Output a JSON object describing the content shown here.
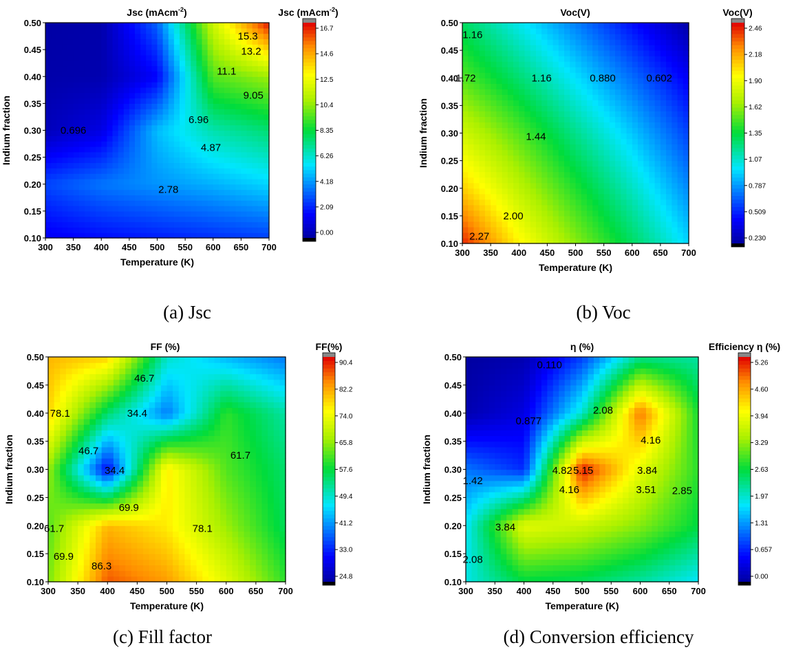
{
  "chart_data": [
    {
      "type": "heatmap",
      "title": "Jsc (mAcm<sup>-2</sup>)",
      "title_text": "Jsc (mAcm",
      "title_sup": "-2",
      "title_tail": ")",
      "xlabel": "Temperature (K)",
      "ylabel": "Indium fraction",
      "x": [
        300,
        400,
        500,
        600,
        700
      ],
      "y": [
        0.1,
        0.2,
        0.3,
        0.4,
        0.5
      ],
      "xticks": [
        "300",
        "350",
        "400",
        "450",
        "500",
        "550",
        "600",
        "650",
        "700"
      ],
      "yticks": [
        "0.10",
        "0.15",
        "0.20",
        "0.25",
        "0.30",
        "0.35",
        "0.40",
        "0.45",
        "0.50"
      ],
      "xlim": [
        300,
        700
      ],
      "ylim": [
        0.1,
        0.5
      ],
      "z": [
        [
          1.6,
          2.0,
          2.3,
          2.6,
          2.9
        ],
        [
          3.0,
          3.8,
          4.3,
          4.8,
          5.4
        ],
        [
          0.5,
          1.3,
          5.0,
          6.8,
          7.6
        ],
        [
          0.2,
          0.3,
          1.8,
          9.5,
          10.5
        ],
        [
          0.1,
          0.2,
          3.5,
          11.5,
          16.5
        ]
      ],
      "colorbar": {
        "title_text": "Jsc (mAcm",
        "title_sup": "-2",
        "title_tail": ")",
        "min": 0.0,
        "max": 16.7,
        "ticks": [
          "0.00",
          "2.09",
          "4.18",
          "6.26",
          "8.35",
          "10.4",
          "12.5",
          "14.6",
          "16.7"
        ]
      },
      "contour_labels": [
        {
          "text": "15.3",
          "x": 662,
          "y": 0.475
        },
        {
          "text": "13.2",
          "x": 668,
          "y": 0.447
        },
        {
          "text": "11.1",
          "x": 624,
          "y": 0.41
        },
        {
          "text": "9.05",
          "x": 672,
          "y": 0.365
        },
        {
          "text": "6.96",
          "x": 574,
          "y": 0.32
        },
        {
          "text": "4.87",
          "x": 596,
          "y": 0.268
        },
        {
          "text": "2.78",
          "x": 520,
          "y": 0.19
        },
        {
          "text": "0.696",
          "x": 350,
          "y": 0.3
        }
      ],
      "caption": "(a) Jsc"
    },
    {
      "type": "heatmap",
      "title": "Voc(V)",
      "xlabel": "Temperature (K)",
      "ylabel": "Indium fraction",
      "x": [
        300,
        400,
        500,
        600,
        700
      ],
      "y": [
        0.1,
        0.2,
        0.3,
        0.4,
        0.5
      ],
      "xticks": [
        "300",
        "350",
        "400",
        "450",
        "500",
        "550",
        "600",
        "650",
        "700"
      ],
      "yticks": [
        "0.10",
        "0.15",
        "0.20",
        "0.25",
        "0.30",
        "0.35",
        "0.40",
        "0.45",
        "0.50"
      ],
      "xlim": [
        300,
        700
      ],
      "ylim": [
        0.1,
        0.5
      ],
      "z": [
        [
          2.4,
          1.95,
          1.6,
          1.28,
          0.95
        ],
        [
          2.05,
          1.72,
          1.4,
          1.1,
          0.78
        ],
        [
          1.78,
          1.5,
          1.2,
          0.92,
          0.62
        ],
        [
          1.5,
          1.25,
          0.98,
          0.72,
          0.45
        ],
        [
          1.28,
          1.02,
          0.76,
          0.5,
          0.25
        ]
      ],
      "colorbar": {
        "title_text": "Voc(V)",
        "min": 0.23,
        "max": 2.46,
        "ticks": [
          "0.230",
          "0.509",
          "0.787",
          "1.07",
          "1.35",
          "1.62",
          "1.90",
          "2.18",
          "2.46"
        ]
      },
      "contour_labels": [
        {
          "text": "1.16",
          "x": 318,
          "y": 0.478
        },
        {
          "text": "1.72",
          "x": 306,
          "y": 0.4
        },
        {
          "text": "1.16",
          "x": 440,
          "y": 0.4
        },
        {
          "text": "0.880",
          "x": 548,
          "y": 0.4
        },
        {
          "text": "0.602",
          "x": 648,
          "y": 0.4
        },
        {
          "text": "1.44",
          "x": 430,
          "y": 0.294
        },
        {
          "text": "2.00",
          "x": 390,
          "y": 0.15
        },
        {
          "text": "2.27",
          "x": 330,
          "y": 0.113
        }
      ],
      "caption": "(b) Voc"
    },
    {
      "type": "heatmap",
      "title": "FF (%)",
      "xlabel": "Temperature (K)",
      "ylabel": "Indium fraction",
      "x": [
        300,
        400,
        500,
        600,
        700
      ],
      "y": [
        0.1,
        0.2,
        0.3,
        0.4,
        0.5
      ],
      "xticks": [
        "300",
        "350",
        "400",
        "450",
        "500",
        "550",
        "600",
        "650",
        "700"
      ],
      "yticks": [
        "0.10",
        "0.15",
        "0.20",
        "0.25",
        "0.30",
        "0.35",
        "0.40",
        "0.45",
        "0.50"
      ],
      "xlim": [
        300,
        700
      ],
      "ylim": [
        0.1,
        0.5
      ],
      "z": [
        [
          64,
          86,
          82,
          72,
          60
        ],
        [
          62,
          80,
          76,
          66,
          56
        ],
        [
          66,
          32,
          76,
          62,
          55
        ],
        [
          78,
          55,
          40,
          60,
          52
        ],
        [
          80,
          78,
          50,
          44,
          40
        ]
      ],
      "colorbar": {
        "title_text": "FF(%)",
        "min": 24.8,
        "max": 90.4,
        "ticks": [
          "24.8",
          "33.0",
          "41.2",
          "49.4",
          "57.6",
          "65.8",
          "74.0",
          "82.2",
          "90.4"
        ]
      },
      "contour_labels": [
        {
          "text": "46.7",
          "x": 462,
          "y": 0.462
        },
        {
          "text": "78.1",
          "x": 320,
          "y": 0.4
        },
        {
          "text": "34.4",
          "x": 450,
          "y": 0.4
        },
        {
          "text": "46.7",
          "x": 368,
          "y": 0.333
        },
        {
          "text": "34.4",
          "x": 412,
          "y": 0.298
        },
        {
          "text": "61.7",
          "x": 624,
          "y": 0.325
        },
        {
          "text": "69.9",
          "x": 436,
          "y": 0.232
        },
        {
          "text": "78.1",
          "x": 560,
          "y": 0.195
        },
        {
          "text": "61.7",
          "x": 310,
          "y": 0.195
        },
        {
          "text": "69.9",
          "x": 326,
          "y": 0.145
        },
        {
          "text": "86.3",
          "x": 390,
          "y": 0.128
        }
      ],
      "caption": "(c) Fill factor"
    },
    {
      "type": "heatmap",
      "title": "η (%)",
      "xlabel": "Temperature (K)",
      "ylabel": "Indium fraction",
      "x": [
        300,
        400,
        500,
        600,
        700
      ],
      "y": [
        0.1,
        0.2,
        0.3,
        0.4,
        0.5
      ],
      "xticks": [
        "300",
        "350",
        "400",
        "450",
        "500",
        "550",
        "600",
        "650",
        "700"
      ],
      "yticks": [
        "0.10",
        "0.15",
        "0.20",
        "0.25",
        "0.30",
        "0.35",
        "0.40",
        "0.45",
        "0.50"
      ],
      "xlim": [
        300,
        700
      ],
      "ylim": [
        0.1,
        0.5
      ],
      "z": [
        [
          1.9,
          2.6,
          2.5,
          2.2,
          1.8
        ],
        [
          1.8,
          3.8,
          3.6,
          3.2,
          2.6
        ],
        [
          1.2,
          0.8,
          5.2,
          3.8,
          2.8
        ],
        [
          0.1,
          0.4,
          2.0,
          4.8,
          2.7
        ],
        [
          0.0,
          0.1,
          0.9,
          2.3,
          2.2
        ]
      ],
      "colorbar": {
        "title_text": "Efficiency η (%)",
        "min": 0.0,
        "max": 5.26,
        "ticks": [
          "0.00",
          "0.657",
          "1.31",
          "1.97",
          "2.63",
          "3.29",
          "3.94",
          "4.60",
          "5.26"
        ]
      },
      "contour_labels": [
        {
          "text": "0.110",
          "x": 444,
          "y": 0.486
        },
        {
          "text": "2.08",
          "x": 536,
          "y": 0.405
        },
        {
          "text": "0.877",
          "x": 408,
          "y": 0.386
        },
        {
          "text": "4.16",
          "x": 618,
          "y": 0.352
        },
        {
          "text": "4.82",
          "x": 466,
          "y": 0.298
        },
        {
          "text": "5.15",
          "x": 502,
          "y": 0.298
        },
        {
          "text": "3.84",
          "x": 612,
          "y": 0.298
        },
        {
          "text": "1.42",
          "x": 312,
          "y": 0.28
        },
        {
          "text": "4.16",
          "x": 478,
          "y": 0.264
        },
        {
          "text": "3.51",
          "x": 610,
          "y": 0.264
        },
        {
          "text": "2.85",
          "x": 672,
          "y": 0.262
        },
        {
          "text": "3.84",
          "x": 368,
          "y": 0.197
        },
        {
          "text": "2.08",
          "x": 312,
          "y": 0.14
        }
      ],
      "caption": "(d) Conversion efficiency"
    }
  ]
}
